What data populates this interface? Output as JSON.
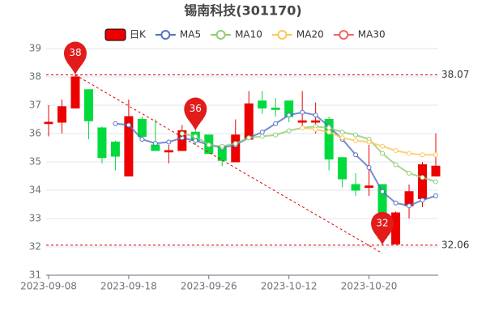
{
  "chart_data": {
    "type": "candlestick",
    "title": "锡南科技(301170)",
    "categories": [
      "2023-09-08",
      null,
      null,
      null,
      null,
      null,
      "2023-09-18",
      null,
      null,
      null,
      null,
      null,
      "2023-09-26",
      null,
      null,
      null,
      null,
      null,
      "2023-10-12",
      null,
      null,
      null,
      null,
      null,
      "2023-10-20",
      null,
      null,
      null,
      null,
      null
    ],
    "series": [
      {
        "name": "日K",
        "up_color": "#ec0000",
        "down_color": "#00da3c",
        "open": [
          36.35,
          36.4,
          36.9,
          37.55,
          36.2,
          35.7,
          34.5,
          36.5,
          35.6,
          35.35,
          35.4,
          36.05,
          35.95,
          35.55,
          35.0,
          35.8,
          37.15,
          36.9,
          37.15,
          36.4,
          36.4,
          36.5,
          35.15,
          34.2,
          34.1,
          34.2,
          32.1,
          33.45,
          33.7,
          34.5
        ],
        "close": [
          36.4,
          36.95,
          38.0,
          36.45,
          35.15,
          35.2,
          36.6,
          35.9,
          35.4,
          35.4,
          36.1,
          35.75,
          35.3,
          35.05,
          35.95,
          37.05,
          36.9,
          36.85,
          36.6,
          36.45,
          36.45,
          35.1,
          34.4,
          34.0,
          34.15,
          32.3,
          33.2,
          33.95,
          34.9,
          34.85
        ],
        "high": [
          37.0,
          37.2,
          38.07,
          37.55,
          36.25,
          35.75,
          37.2,
          36.6,
          36.5,
          35.6,
          36.3,
          36.1,
          35.95,
          35.6,
          36.5,
          37.5,
          37.5,
          37.25,
          37.15,
          37.5,
          37.1,
          36.6,
          35.15,
          34.6,
          35.6,
          34.2,
          33.25,
          34.2,
          35.0,
          36.0
        ],
        "low": [
          35.9,
          36.0,
          36.9,
          35.8,
          34.95,
          34.7,
          34.5,
          35.7,
          35.4,
          34.95,
          35.4,
          35.6,
          35.3,
          34.85,
          35.0,
          35.8,
          36.7,
          36.6,
          36.4,
          36.2,
          36.0,
          34.7,
          34.1,
          33.8,
          33.8,
          32.06,
          32.1,
          33.0,
          33.4,
          34.5
        ]
      },
      {
        "name": "MA5",
        "color": "#5470c6",
        "values": [
          null,
          null,
          null,
          null,
          null,
          36.35,
          36.3,
          35.8,
          35.65,
          35.7,
          35.85,
          35.75,
          35.6,
          35.5,
          35.6,
          35.85,
          36.05,
          36.35,
          36.65,
          36.75,
          36.65,
          36.25,
          35.8,
          35.25,
          34.8,
          33.95,
          33.55,
          33.45,
          33.65,
          33.8
        ]
      },
      {
        "name": "MA10",
        "color": "#91cc75",
        "values": [
          null,
          null,
          null,
          null,
          null,
          null,
          null,
          null,
          null,
          null,
          36.0,
          35.9,
          35.6,
          35.55,
          35.65,
          35.85,
          35.9,
          35.95,
          36.1,
          36.2,
          36.25,
          36.2,
          36.05,
          35.95,
          35.8,
          35.3,
          34.9,
          34.6,
          34.45,
          34.3
        ]
      },
      {
        "name": "MA20",
        "color": "#fac858",
        "values": [
          null,
          null,
          null,
          null,
          null,
          null,
          null,
          null,
          null,
          null,
          null,
          null,
          null,
          null,
          null,
          null,
          null,
          null,
          null,
          36.2,
          36.15,
          36.05,
          35.85,
          35.75,
          35.7,
          35.55,
          35.4,
          35.3,
          35.25,
          35.25
        ]
      },
      {
        "name": "MA30",
        "color": "#ee6666",
        "values": [
          null,
          null,
          null,
          null,
          null,
          null,
          null,
          null,
          null,
          null,
          null,
          null,
          null,
          null,
          null,
          null,
          null,
          null,
          null,
          null,
          null,
          null,
          null,
          null,
          null,
          null,
          null,
          null,
          null,
          null
        ]
      }
    ],
    "ylim": [
      31,
      39
    ],
    "yticks": [
      31,
      32,
      33,
      34,
      35,
      36,
      37,
      38,
      39
    ],
    "grid": true,
    "ref_lines": [
      38.07,
      32.06
    ],
    "markers": [
      {
        "index": 2,
        "value": 38.07,
        "label": "38"
      },
      {
        "index": 11,
        "value": 36.1,
        "label": "36"
      },
      {
        "index": 25,
        "value": 32.06,
        "label": "32"
      }
    ]
  }
}
